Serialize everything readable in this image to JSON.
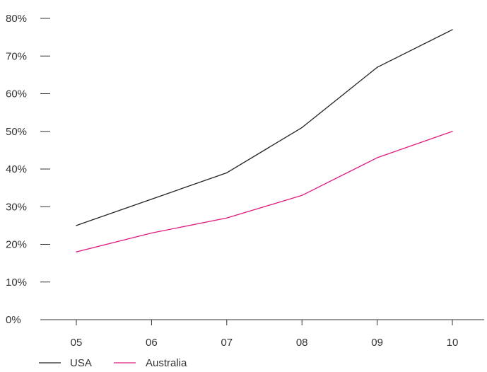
{
  "chart_data": {
    "type": "line",
    "title": "",
    "xlabel": "",
    "ylabel": "",
    "categories": [
      "05",
      "06",
      "07",
      "08",
      "09",
      "10"
    ],
    "ylim": [
      0,
      80
    ],
    "y_ticks": [
      0,
      10,
      20,
      30,
      40,
      50,
      60,
      70,
      80
    ],
    "y_tick_labels": [
      "0%",
      "10%",
      "20%",
      "30%",
      "40%",
      "50%",
      "60%",
      "70%",
      "80%"
    ],
    "grid": false,
    "legend_position": "bottom-left",
    "series": [
      {
        "name": "USA",
        "color": "#222222",
        "values": [
          25,
          32,
          39,
          51,
          67,
          77
        ]
      },
      {
        "name": "Australia",
        "color": "#e0197d",
        "values": [
          18,
          23,
          27,
          33,
          43,
          50
        ]
      }
    ]
  }
}
